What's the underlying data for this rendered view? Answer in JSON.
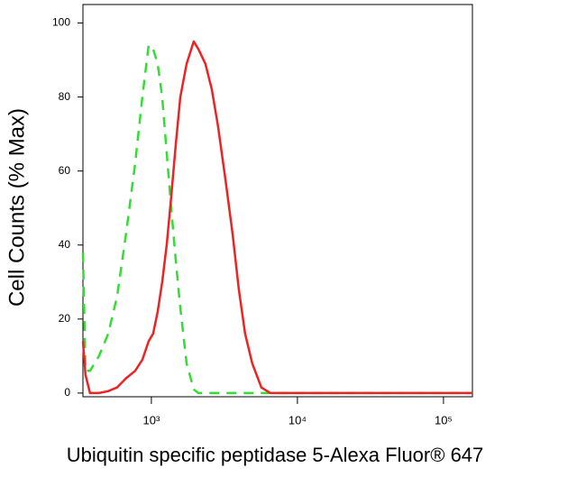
{
  "chart_data": {
    "type": "line",
    "xlabel": "Ubiquitin specific peptidase 5-Alexa Fluor® 647",
    "ylabel": "Cell Counts (% Max)",
    "xscale": "log",
    "xlim": [
      340,
      157800
    ],
    "ylim": [
      -1,
      105
    ],
    "xticks": [
      {
        "value": 1000,
        "label": "10³"
      },
      {
        "value": 10000,
        "label": "10⁴"
      },
      {
        "value": 100000,
        "label": "10⁵"
      }
    ],
    "yticks": [
      0,
      20,
      40,
      60,
      80,
      100
    ],
    "x": [
      340,
      354,
      380,
      438,
      506,
      582,
      671,
      774,
      867,
      958,
      1028,
      1104,
      1186,
      1274,
      1367,
      1468,
      1577,
      1742,
      1951,
      2094,
      2344,
      2594,
      2864,
      3206,
      3597,
      3972,
      4385,
      4909,
      5662,
      6531,
      10000,
      27040,
      157800
    ],
    "series": [
      {
        "color": "#33dd33",
        "style": "dashed",
        "values": [
          38,
          6,
          6,
          10,
          16,
          26,
          43,
          62,
          80,
          94,
          93,
          89,
          80,
          65,
          50,
          36,
          23,
          8,
          1,
          0,
          0,
          0,
          0,
          0,
          0,
          0,
          0,
          0,
          0,
          0,
          0,
          0,
          0
        ]
      },
      {
        "color": "#ee2222",
        "style": "solid",
        "values": [
          14,
          5,
          0,
          0,
          0.5,
          1.5,
          4,
          6,
          9,
          14,
          16,
          22,
          30,
          40,
          53,
          67,
          80,
          89,
          95,
          93,
          89,
          82,
          72,
          58,
          43,
          28,
          16,
          8,
          1.5,
          0,
          0,
          0,
          0
        ]
      }
    ]
  }
}
